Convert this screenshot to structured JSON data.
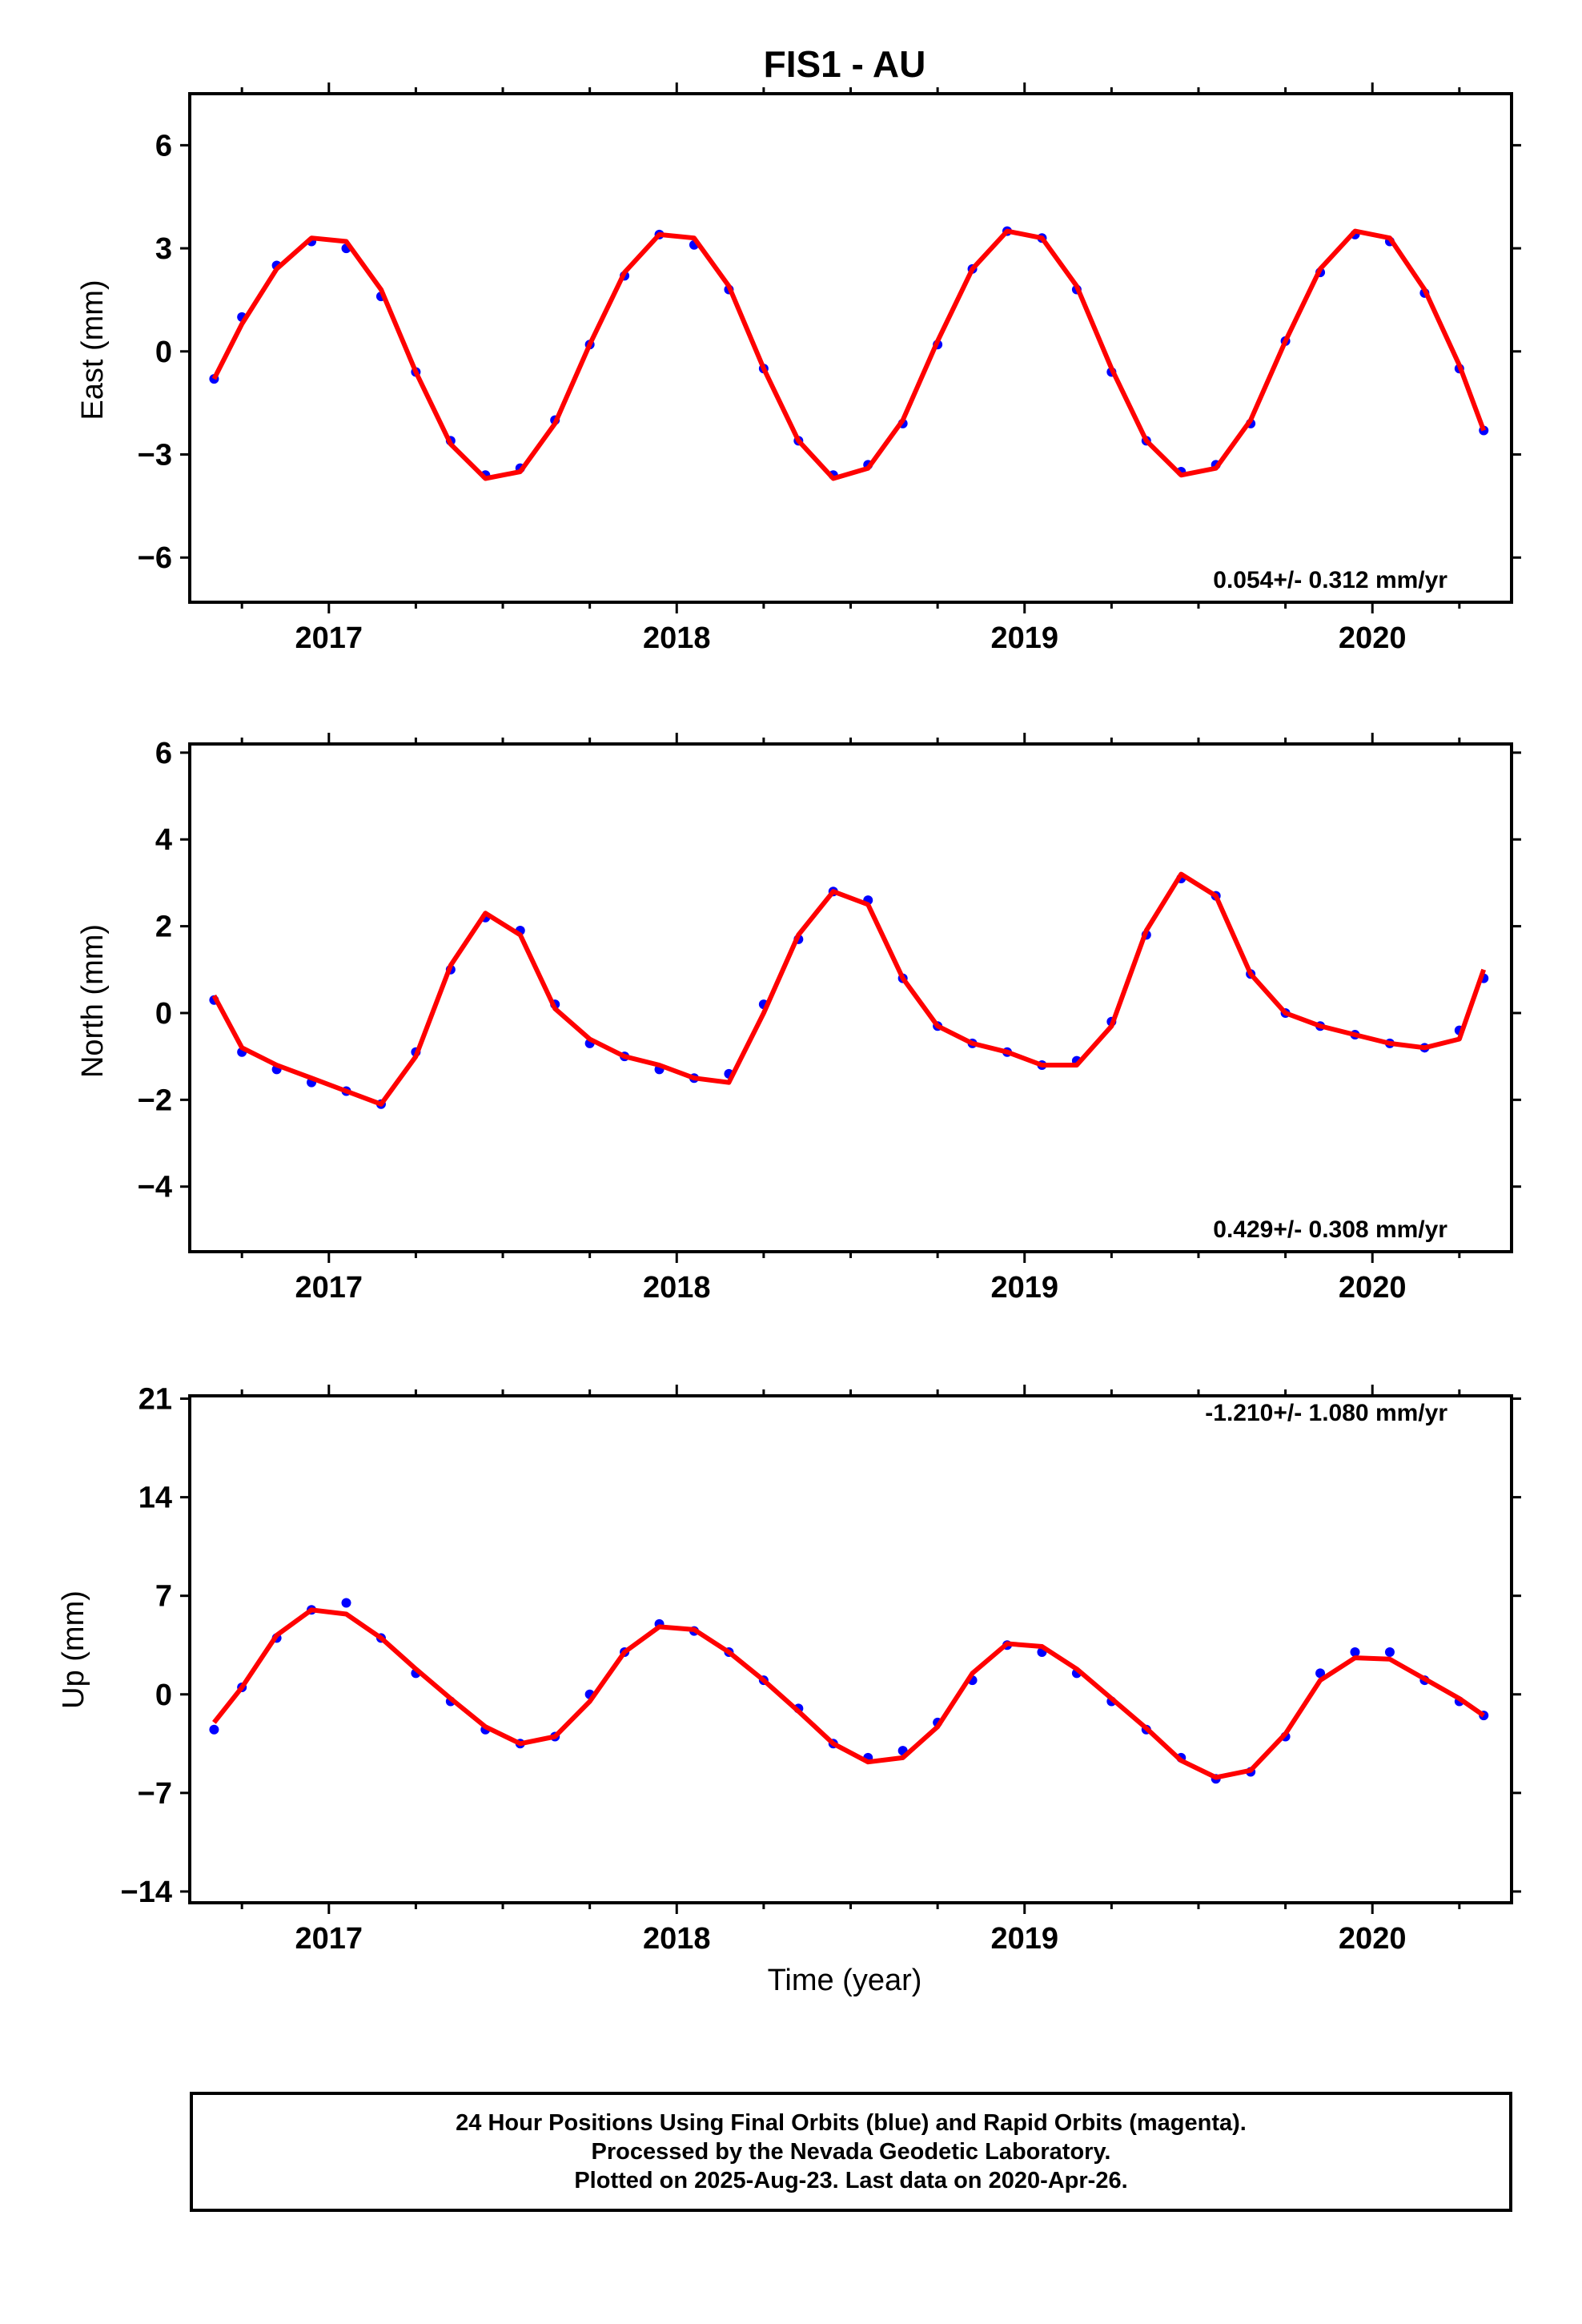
{
  "chart_data": [
    {
      "type": "scatter",
      "title": "FIS1 - AU",
      "xlabel": "",
      "ylabel": "East (mm)",
      "xlim": [
        2016.6,
        2020.4
      ],
      "ylim": [
        -7.3,
        7.5
      ],
      "xticks": [
        2017,
        2018,
        2019,
        2020
      ],
      "xtick_labels": [
        "2017",
        "2018",
        "2019",
        "2020"
      ],
      "yticks": [
        -6,
        -3,
        0,
        3,
        6
      ],
      "ytick_labels": [
        "−6",
        "−3",
        "0",
        "3",
        "6"
      ],
      "annotation": "0.054+/- 0.312 mm/yr",
      "series": [
        {
          "color": "#0000ff",
          "x": [
            2016.67,
            2016.75,
            2016.85,
            2016.95,
            2017.05,
            2017.15,
            2017.25,
            2017.35,
            2017.45,
            2017.55,
            2017.65,
            2017.75,
            2017.85,
            2017.95,
            2018.05,
            2018.15,
            2018.25,
            2018.35,
            2018.45,
            2018.55,
            2018.65,
            2018.75,
            2018.85,
            2018.95,
            2019.05,
            2019.15,
            2019.25,
            2019.35,
            2019.45,
            2019.55,
            2019.65,
            2019.75,
            2019.85,
            2019.95,
            2020.05,
            2020.15,
            2020.25,
            2020.32
          ],
          "y": [
            -0.8,
            1.0,
            2.5,
            3.2,
            3.0,
            1.6,
            -0.6,
            -2.6,
            -3.6,
            -3.4,
            -2.0,
            0.2,
            2.2,
            3.4,
            3.1,
            1.8,
            -0.5,
            -2.6,
            -3.6,
            -3.3,
            -2.1,
            0.2,
            2.4,
            3.5,
            3.3,
            1.8,
            -0.6,
            -2.6,
            -3.5,
            -3.3,
            -2.1,
            0.3,
            2.3,
            3.4,
            3.2,
            1.7,
            -0.5,
            -2.3
          ]
        },
        {
          "type": "line",
          "color": "#ff0000",
          "x": [
            2016.67,
            2016.75,
            2016.85,
            2016.95,
            2017.05,
            2017.15,
            2017.25,
            2017.35,
            2017.45,
            2017.55,
            2017.65,
            2017.75,
            2017.85,
            2017.95,
            2018.05,
            2018.15,
            2018.25,
            2018.35,
            2018.45,
            2018.55,
            2018.65,
            2018.75,
            2018.85,
            2018.95,
            2019.05,
            2019.15,
            2019.25,
            2019.35,
            2019.45,
            2019.55,
            2019.65,
            2019.75,
            2019.85,
            2019.95,
            2020.05,
            2020.15,
            2020.25,
            2020.32
          ],
          "y": [
            -0.8,
            0.8,
            2.4,
            3.3,
            3.2,
            1.8,
            -0.6,
            -2.7,
            -3.7,
            -3.5,
            -2.1,
            0.2,
            2.3,
            3.4,
            3.3,
            1.9,
            -0.5,
            -2.6,
            -3.7,
            -3.4,
            -2.0,
            0.3,
            2.4,
            3.5,
            3.3,
            1.9,
            -0.5,
            -2.6,
            -3.6,
            -3.4,
            -2.0,
            0.3,
            2.4,
            3.5,
            3.3,
            1.8,
            -0.4,
            -2.3
          ]
        }
      ]
    },
    {
      "type": "scatter",
      "xlabel": "",
      "ylabel": "North (mm)",
      "xlim": [
        2016.6,
        2020.4
      ],
      "ylim": [
        -5.5,
        6.2
      ],
      "xticks": [
        2017,
        2018,
        2019,
        2020
      ],
      "xtick_labels": [
        "2017",
        "2018",
        "2019",
        "2020"
      ],
      "yticks": [
        -4,
        -2,
        0,
        2,
        4,
        6
      ],
      "ytick_labels": [
        "−4",
        "−2",
        "0",
        "2",
        "4",
        "6"
      ],
      "annotation": "0.429+/- 0.308 mm/yr",
      "series": [
        {
          "color": "#0000ff",
          "x": [
            2016.67,
            2016.75,
            2016.85,
            2016.95,
            2017.05,
            2017.15,
            2017.25,
            2017.35,
            2017.45,
            2017.55,
            2017.65,
            2017.75,
            2017.85,
            2017.95,
            2018.05,
            2018.15,
            2018.25,
            2018.35,
            2018.45,
            2018.55,
            2018.65,
            2018.75,
            2018.85,
            2018.95,
            2019.05,
            2019.15,
            2019.25,
            2019.35,
            2019.45,
            2019.55,
            2019.65,
            2019.75,
            2019.85,
            2019.95,
            2020.05,
            2020.15,
            2020.25,
            2020.32
          ],
          "y": [
            0.3,
            -0.9,
            -1.3,
            -1.6,
            -1.8,
            -2.1,
            -0.9,
            1.0,
            2.2,
            1.9,
            0.2,
            -0.7,
            -1.0,
            -1.3,
            -1.5,
            -1.4,
            0.2,
            1.7,
            2.8,
            2.6,
            0.8,
            -0.3,
            -0.7,
            -0.9,
            -1.2,
            -1.1,
            -0.2,
            1.8,
            3.1,
            2.7,
            0.9,
            0.0,
            -0.3,
            -0.5,
            -0.7,
            -0.8,
            -0.4,
            0.8
          ]
        },
        {
          "type": "line",
          "color": "#ff0000",
          "x": [
            2016.67,
            2016.75,
            2016.85,
            2016.95,
            2017.05,
            2017.15,
            2017.25,
            2017.35,
            2017.45,
            2017.55,
            2017.65,
            2017.75,
            2017.85,
            2017.95,
            2018.05,
            2018.15,
            2018.25,
            2018.35,
            2018.45,
            2018.55,
            2018.65,
            2018.75,
            2018.85,
            2018.95,
            2019.05,
            2019.15,
            2019.25,
            2019.35,
            2019.45,
            2019.55,
            2019.65,
            2019.75,
            2019.85,
            2019.95,
            2020.05,
            2020.15,
            2020.25,
            2020.32
          ],
          "y": [
            0.4,
            -0.8,
            -1.2,
            -1.5,
            -1.8,
            -2.1,
            -1.0,
            1.1,
            2.3,
            1.8,
            0.1,
            -0.6,
            -1.0,
            -1.2,
            -1.5,
            -1.6,
            0.0,
            1.8,
            2.8,
            2.5,
            0.8,
            -0.3,
            -0.7,
            -0.9,
            -1.2,
            -1.2,
            -0.3,
            1.9,
            3.2,
            2.7,
            0.9,
            0.0,
            -0.3,
            -0.5,
            -0.7,
            -0.8,
            -0.6,
            1.0
          ]
        }
      ]
    },
    {
      "type": "scatter",
      "xlabel": "Time (year)",
      "ylabel": "Up (mm)",
      "xlim": [
        2016.6,
        2020.4
      ],
      "ylim": [
        -14.8,
        21.2
      ],
      "xticks": [
        2017,
        2018,
        2019,
        2020
      ],
      "xtick_labels": [
        "2017",
        "2018",
        "2019",
        "2020"
      ],
      "yticks": [
        -14,
        -7,
        0,
        7,
        14,
        21
      ],
      "ytick_labels": [
        "−14",
        "−7",
        "0",
        "7",
        "14",
        "21"
      ],
      "annotation": "-1.210+/- 1.080 mm/yr",
      "series": [
        {
          "color": "#0000ff",
          "x": [
            2016.67,
            2016.75,
            2016.85,
            2016.95,
            2017.05,
            2017.15,
            2017.25,
            2017.35,
            2017.45,
            2017.55,
            2017.65,
            2017.75,
            2017.85,
            2017.95,
            2018.05,
            2018.15,
            2018.25,
            2018.35,
            2018.45,
            2018.55,
            2018.65,
            2018.75,
            2018.85,
            2018.95,
            2019.05,
            2019.15,
            2019.25,
            2019.35,
            2019.45,
            2019.55,
            2019.65,
            2019.75,
            2019.85,
            2019.95,
            2020.05,
            2020.15,
            2020.25,
            2020.32
          ],
          "y": [
            -2.5,
            0.5,
            4.0,
            6.0,
            6.5,
            4.0,
            1.5,
            -0.5,
            -2.5,
            -3.5,
            -3.0,
            0.0,
            3.0,
            5.0,
            4.5,
            3.0,
            1.0,
            -1.0,
            -3.5,
            -4.5,
            -4.0,
            -2.0,
            1.0,
            3.5,
            3.0,
            1.5,
            -0.5,
            -2.5,
            -4.5,
            -6.0,
            -5.5,
            -3.0,
            1.5,
            3.0,
            3.0,
            1.0,
            -0.5,
            -1.5
          ]
        },
        {
          "type": "line",
          "color": "#ff0000",
          "x": [
            2016.67,
            2016.75,
            2016.85,
            2016.95,
            2017.05,
            2017.15,
            2017.25,
            2017.35,
            2017.45,
            2017.55,
            2017.65,
            2017.75,
            2017.85,
            2017.95,
            2018.05,
            2018.15,
            2018.25,
            2018.35,
            2018.45,
            2018.55,
            2018.65,
            2018.75,
            2018.85,
            2018.95,
            2019.05,
            2019.15,
            2019.25,
            2019.35,
            2019.45,
            2019.55,
            2019.65,
            2019.75,
            2019.85,
            2019.95,
            2020.05,
            2020.15,
            2020.25,
            2020.32
          ],
          "y": [
            -2.0,
            0.5,
            4.2,
            6.0,
            5.7,
            4.0,
            1.8,
            -0.3,
            -2.3,
            -3.5,
            -3.0,
            -0.5,
            3.0,
            4.8,
            4.6,
            3.0,
            1.0,
            -1.2,
            -3.5,
            -4.8,
            -4.5,
            -2.3,
            1.5,
            3.6,
            3.4,
            1.8,
            -0.3,
            -2.4,
            -4.7,
            -5.9,
            -5.4,
            -2.8,
            1.0,
            2.6,
            2.5,
            1.1,
            -0.3,
            -1.5
          ]
        }
      ]
    }
  ],
  "caption": {
    "line1": "24 Hour Positions Using Final Orbits (blue) and Rapid Orbits (magenta).",
    "line2": "Processed by the Nevada Geodetic Laboratory.",
    "line3": "Plotted on 2025-Aug-23. Last data on 2020-Apr-26."
  }
}
